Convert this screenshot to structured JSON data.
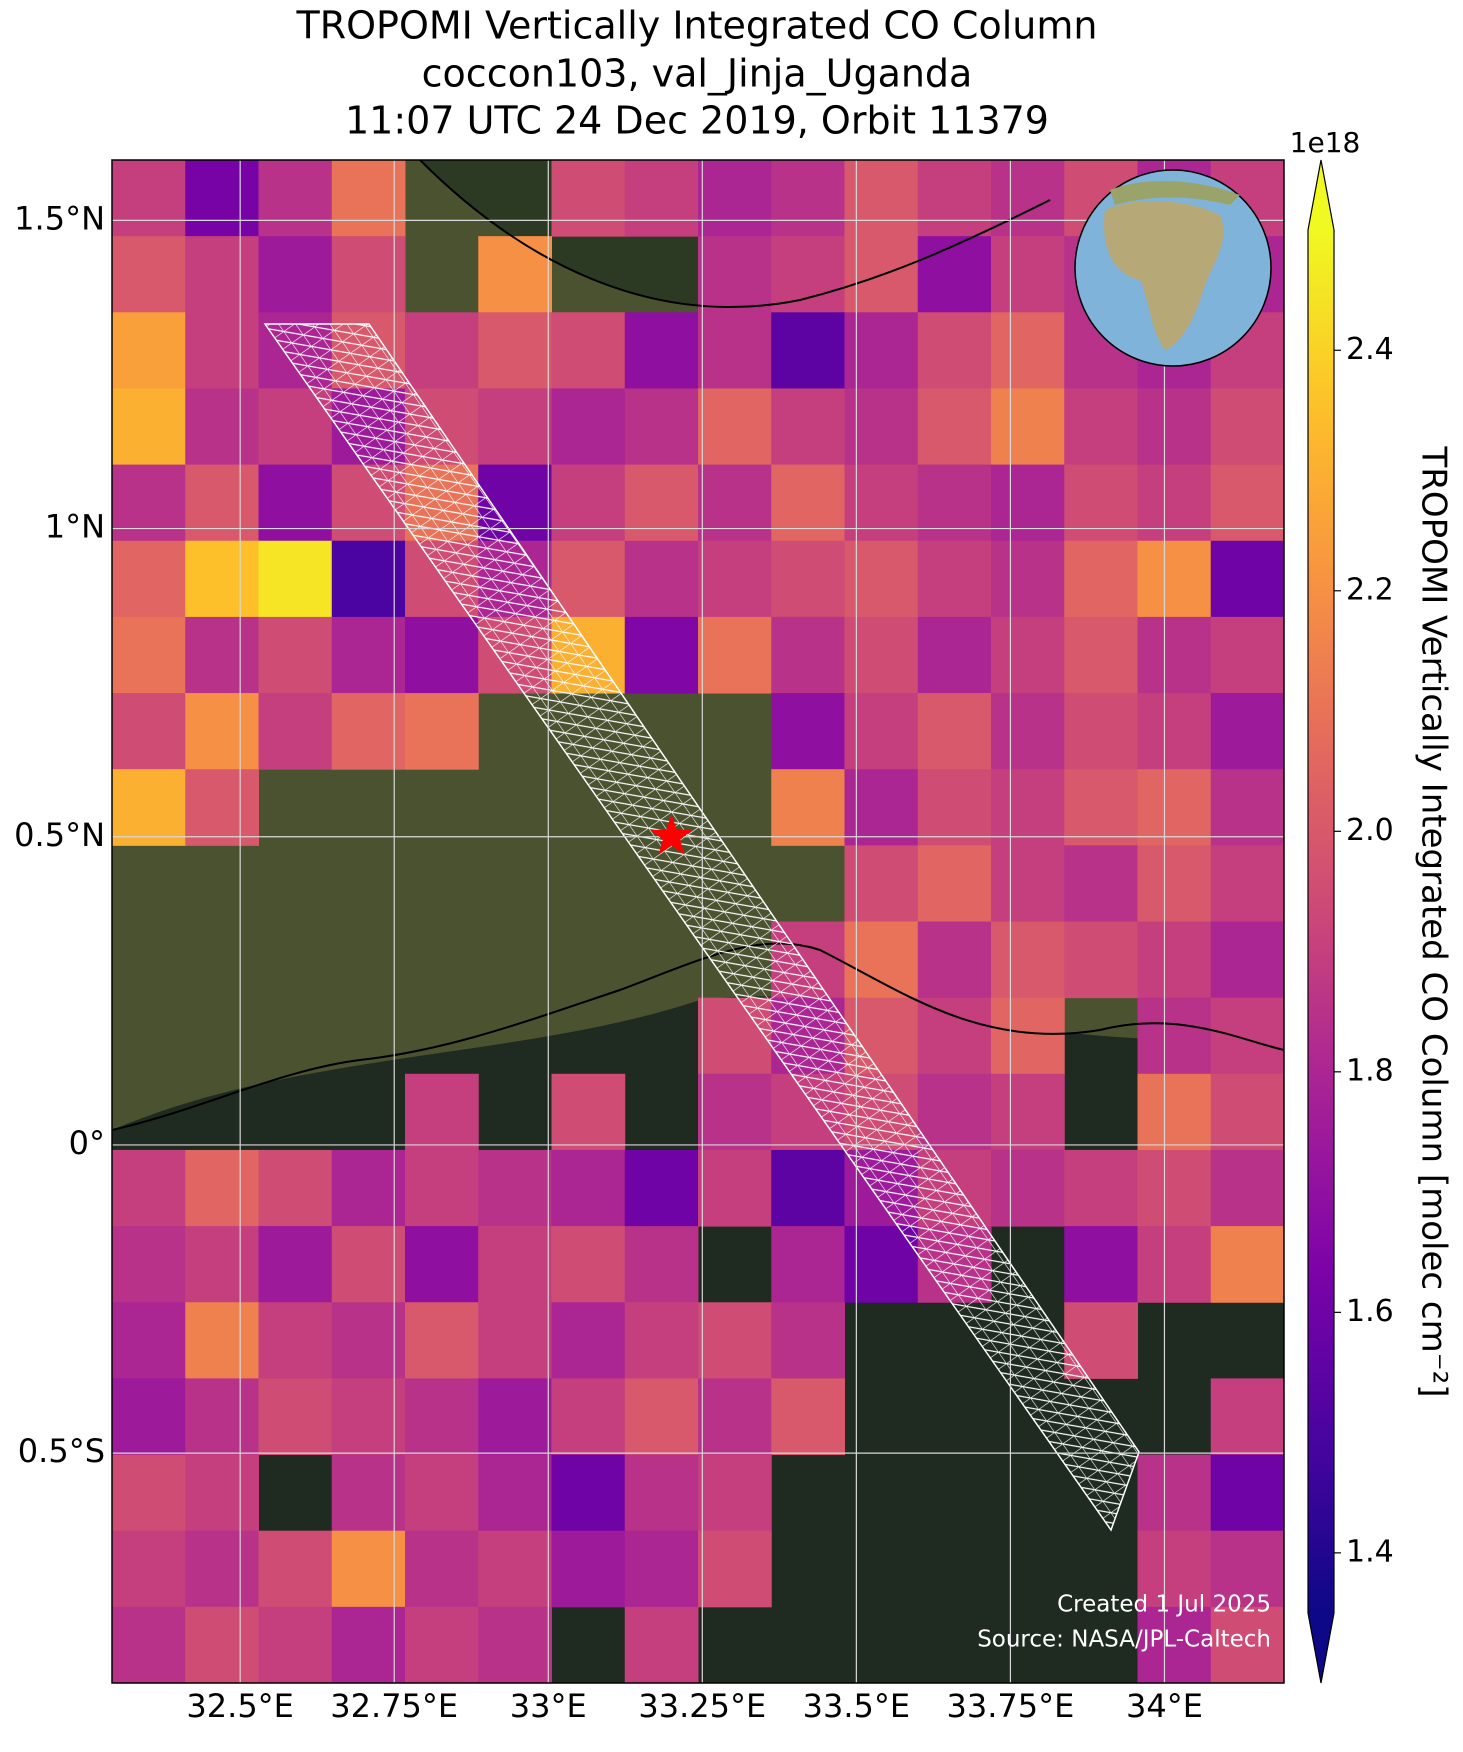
{
  "chart_data": {
    "type": "gridded-map",
    "title": [
      "TROPOMI Vertically Integrated CO Column",
      "coccon103, val_Jinja_Uganda",
      "11:07 UTC 24 Dec 2019, Orbit 11379"
    ],
    "xlim": [
      32.292,
      34.194
    ],
    "ylim": [
      -0.873,
      1.598
    ],
    "xticks": [
      {
        "value": 32.5,
        "label": "32.5°E"
      },
      {
        "value": 32.75,
        "label": "32.75°E"
      },
      {
        "value": 33,
        "label": "33°E"
      },
      {
        "value": 33.25,
        "label": "33.25°E"
      },
      {
        "value": 33.5,
        "label": "33.5°E"
      },
      {
        "value": 33.75,
        "label": "33.75°E"
      },
      {
        "value": 34,
        "label": "34°E"
      }
    ],
    "yticks": [
      {
        "value": 1.5,
        "label": "1.5°N"
      },
      {
        "value": 1,
        "label": "1°N"
      },
      {
        "value": 0.5,
        "label": "0.5°N"
      },
      {
        "value": 0,
        "label": "0°"
      },
      {
        "value": -0.5,
        "label": "0.5°S"
      }
    ],
    "grid": true,
    "colormap": "plasma",
    "clim": [
      1.35,
      2.5
    ],
    "colorbar_ticks": [
      1.4,
      1.6,
      1.8,
      {
        "value": 2,
        "label": "2.0"
      },
      2.2,
      2.4
    ],
    "colorbar_offset": "1e18",
    "colorbar_label": "TROPOMI Vertically Integrated CO Column [molec cm⁻²]",
    "site": {
      "lon": 33.2,
      "lat": 0.5,
      "color": "#ff0000"
    },
    "annotations": [
      "Created 1 Jul 2025",
      "Source: NASA/JPL-Caltech"
    ],
    "grid_values": [
      [
        1.9,
        1.62,
        1.85,
        2.1,
        null,
        null,
        1.95,
        1.9,
        1.8,
        1.85,
        2.0,
        1.9,
        1.85,
        1.95,
        1.8,
        1.9
      ],
      [
        2.0,
        1.9,
        1.75,
        1.95,
        null,
        2.2,
        null,
        null,
        1.85,
        1.9,
        2.0,
        1.7,
        1.9,
        1.85,
        1.95,
        1.8
      ],
      [
        2.25,
        1.9,
        1.8,
        2.0,
        1.9,
        2.0,
        1.95,
        1.7,
        1.85,
        1.55,
        1.8,
        1.95,
        2.05,
        1.85,
        1.8,
        1.9
      ],
      [
        2.3,
        1.85,
        1.9,
        1.75,
        1.95,
        1.9,
        1.8,
        1.85,
        2.05,
        1.9,
        1.85,
        2.0,
        2.15,
        1.9,
        1.85,
        1.95
      ],
      [
        1.85,
        2.0,
        1.7,
        1.95,
        2.1,
        1.6,
        1.9,
        2.0,
        1.85,
        2.05,
        1.9,
        1.85,
        1.8,
        1.95,
        1.9,
        2.0
      ],
      [
        2.05,
        2.35,
        2.45,
        1.5,
        1.95,
        1.8,
        2.0,
        1.85,
        1.9,
        1.95,
        2.0,
        1.9,
        1.85,
        2.05,
        2.2,
        1.6
      ],
      [
        2.1,
        1.85,
        1.95,
        1.8,
        1.7,
        1.95,
        2.3,
        1.65,
        2.1,
        1.85,
        1.95,
        1.8,
        1.9,
        2.0,
        1.85,
        1.9
      ],
      [
        1.95,
        2.2,
        1.9,
        2.05,
        2.1,
        null,
        null,
        null,
        null,
        1.7,
        1.9,
        2.0,
        1.85,
        1.95,
        1.9,
        1.75
      ],
      [
        2.3,
        2.0,
        null,
        null,
        null,
        null,
        null,
        null,
        null,
        2.15,
        1.8,
        1.95,
        1.9,
        2.0,
        2.05,
        1.85
      ],
      [
        null,
        null,
        null,
        null,
        null,
        null,
        null,
        null,
        null,
        null,
        1.95,
        2.05,
        1.9,
        1.85,
        2.0,
        1.9
      ],
      [
        null,
        null,
        null,
        null,
        null,
        null,
        null,
        null,
        null,
        1.9,
        2.1,
        1.85,
        2.0,
        1.95,
        1.9,
        1.8
      ],
      [
        null,
        null,
        null,
        null,
        null,
        null,
        null,
        null,
        1.95,
        1.8,
        2.0,
        1.9,
        2.05,
        null,
        1.85,
        1.9
      ],
      [
        null,
        null,
        null,
        null,
        1.9,
        null,
        1.95,
        null,
        1.85,
        1.9,
        1.95,
        1.85,
        1.9,
        null,
        2.1,
        1.95
      ],
      [
        1.9,
        2.05,
        1.95,
        1.8,
        1.9,
        1.85,
        1.8,
        1.6,
        1.9,
        1.55,
        1.75,
        1.9,
        1.85,
        1.9,
        1.95,
        1.85
      ],
      [
        1.85,
        1.9,
        1.75,
        1.95,
        1.7,
        1.9,
        1.95,
        1.85,
        null,
        1.8,
        1.6,
        1.85,
        null,
        1.7,
        1.9,
        2.15
      ],
      [
        1.8,
        2.15,
        1.9,
        1.85,
        2.0,
        1.9,
        1.8,
        1.9,
        1.95,
        1.85,
        null,
        null,
        null,
        1.95,
        null,
        null
      ],
      [
        1.75,
        1.85,
        1.95,
        1.9,
        1.85,
        1.75,
        1.9,
        2.0,
        1.85,
        2.0,
        null,
        null,
        null,
        null,
        null,
        1.9
      ],
      [
        1.95,
        1.9,
        null,
        1.85,
        1.9,
        1.8,
        1.6,
        1.85,
        1.9,
        null,
        null,
        null,
        null,
        null,
        1.85,
        1.6
      ],
      [
        1.9,
        1.85,
        1.95,
        2.2,
        1.85,
        1.9,
        1.75,
        1.8,
        1.95,
        null,
        null,
        null,
        null,
        null,
        1.9,
        1.85
      ],
      [
        1.85,
        1.95,
        1.9,
        1.8,
        1.9,
        1.85,
        null,
        1.9,
        null,
        null,
        null,
        null,
        null,
        null,
        1.8,
        1.95
      ]
    ]
  }
}
